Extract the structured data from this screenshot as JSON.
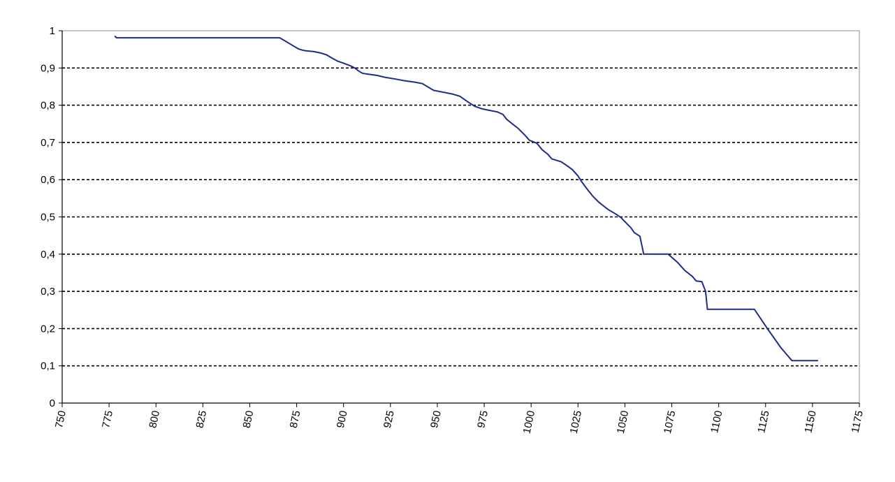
{
  "chart_data": {
    "type": "line",
    "title": "",
    "xlabel": "",
    "ylabel": "",
    "xlim": [
      750,
      1175
    ],
    "ylim": [
      0,
      1
    ],
    "x_ticks": [
      "750",
      "775",
      "800",
      "825",
      "850",
      "875",
      "900",
      "925",
      "950",
      "975",
      "1000",
      "1025",
      "1050",
      "1075",
      "1100",
      "1125",
      "1150",
      "1175"
    ],
    "y_ticks": [
      "0",
      "0,1",
      "0,2",
      "0,3",
      "0,4",
      "0,5",
      "0,6",
      "0,7",
      "0,8",
      "0,9",
      "1"
    ],
    "grid": "horizontal-dashed",
    "legend": "none",
    "line_color": "#1f2a8f",
    "series": [
      {
        "step": true,
        "x": [
          778,
          779,
          866,
          869,
          872,
          875,
          876,
          878,
          880,
          882,
          884,
          886,
          888,
          891,
          894,
          897,
          900,
          904,
          906,
          908,
          910,
          912,
          918,
          922,
          928,
          932,
          938,
          942,
          948,
          952,
          958,
          962,
          966,
          970,
          974,
          978,
          982,
          985,
          987,
          990,
          993,
          995,
          997,
          999,
          1003,
          1006,
          1009,
          1011,
          1016,
          1019,
          1022,
          1025,
          1027,
          1030,
          1033,
          1036,
          1039,
          1041,
          1045,
          1048,
          1051,
          1053,
          1055,
          1058,
          1060,
          1073,
          1078,
          1082,
          1086,
          1088,
          1091,
          1093,
          1094,
          1119,
          1126,
          1133,
          1139,
          1153
        ],
        "y": [
          0.986,
          0.981,
          0.981,
          0.972,
          0.963,
          0.954,
          0.951,
          0.948,
          0.946,
          0.945,
          0.944,
          0.942,
          0.94,
          0.935,
          0.926,
          0.918,
          0.913,
          0.905,
          0.9,
          0.892,
          0.886,
          0.884,
          0.88,
          0.875,
          0.87,
          0.866,
          0.862,
          0.858,
          0.84,
          0.836,
          0.83,
          0.824,
          0.81,
          0.797,
          0.79,
          0.786,
          0.782,
          0.775,
          0.762,
          0.75,
          0.738,
          0.728,
          0.718,
          0.706,
          0.698,
          0.68,
          0.668,
          0.656,
          0.648,
          0.638,
          0.627,
          0.61,
          0.594,
          0.574,
          0.555,
          0.54,
          0.528,
          0.52,
          0.508,
          0.498,
          0.482,
          0.472,
          0.458,
          0.448,
          0.4,
          0.4,
          0.378,
          0.356,
          0.34,
          0.328,
          0.326,
          0.3,
          0.252,
          0.252,
          0.2,
          0.15,
          0.114,
          0.114
        ]
      }
    ]
  }
}
